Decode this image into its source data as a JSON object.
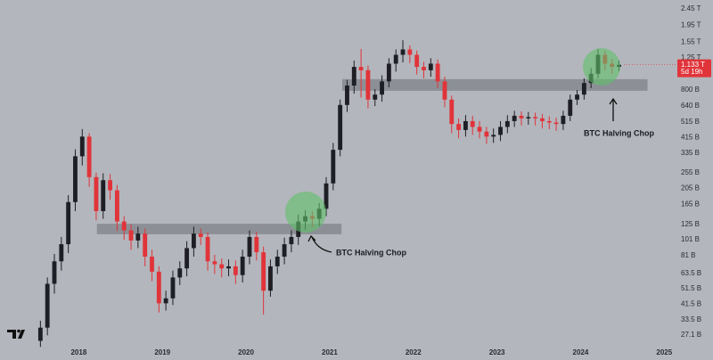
{
  "chart_data": {
    "type": "candlestick",
    "log_scale": true,
    "up_color": "#1e1f24",
    "down_color": "#e0343a",
    "open": [
      25,
      30,
      55,
      75,
      95,
      170,
      320,
      420,
      240,
      150,
      230,
      200,
      130,
      115,
      100,
      110,
      80,
      65,
      42,
      45,
      60,
      68,
      90,
      110,
      105,
      75,
      72,
      68,
      70,
      62,
      80,
      105,
      85,
      50,
      70,
      80,
      95,
      105,
      130,
      140,
      135,
      155,
      220,
      350,
      650,
      850,
      1100,
      1050,
      700,
      750,
      900,
      1150,
      1300,
      1400,
      1300,
      1100,
      1050,
      1150,
      900,
      700,
      500,
      460,
      520,
      480,
      450,
      420,
      430,
      480,
      520,
      560,
      540,
      550,
      540,
      520,
      510,
      500,
      560,
      700,
      750,
      880,
      1000,
      1300,
      1150,
      1100
    ],
    "high": [
      33,
      60,
      83,
      105,
      187,
      352,
      466,
      440,
      255,
      253,
      250,
      215,
      140,
      125,
      121,
      118,
      88,
      70,
      50,
      66,
      75,
      99,
      121,
      118,
      112,
      82,
      78,
      77,
      76,
      88,
      115,
      113,
      92,
      77,
      88,
      104,
      115,
      143,
      152,
      150,
      168,
      240,
      385,
      700,
      920,
      1200,
      1410,
      1120,
      810,
      980,
      1240,
      1400,
      1590,
      1480,
      1380,
      1180,
      1240,
      1220,
      960,
      740,
      540,
      565,
      560,
      520,
      480,
      470,
      520,
      565,
      600,
      595,
      590,
      585,
      575,
      555,
      545,
      600,
      750,
      800,
      940,
      1080,
      1410,
      1380,
      1230,
      1200
    ],
    "low": [
      23,
      27,
      48,
      66,
      84,
      150,
      282,
      210,
      132,
      135,
      176,
      114,
      101,
      88,
      90,
      70,
      57,
      37,
      38,
      41,
      54,
      61,
      80,
      94,
      66,
      63,
      60,
      61,
      55,
      56,
      72,
      76,
      36,
      46,
      63,
      72,
      85,
      94,
      116,
      120,
      122,
      140,
      200,
      320,
      590,
      760,
      720,
      620,
      640,
      680,
      830,
      1030,
      1170,
      1160,
      990,
      940,
      960,
      820,
      630,
      440,
      410,
      420,
      430,
      410,
      380,
      385,
      395,
      440,
      480,
      490,
      495,
      490,
      470,
      465,
      455,
      460,
      520,
      650,
      700,
      820,
      940,
      1050,
      1000,
      1040
    ],
    "close": [
      30,
      55,
      75,
      95,
      170,
      320,
      420,
      240,
      150,
      230,
      200,
      130,
      115,
      100,
      110,
      80,
      65,
      42,
      45,
      60,
      68,
      90,
      110,
      105,
      75,
      72,
      68,
      70,
      62,
      80,
      105,
      85,
      50,
      70,
      80,
      95,
      105,
      130,
      140,
      135,
      155,
      220,
      350,
      650,
      850,
      1100,
      1050,
      700,
      750,
      900,
      1150,
      1300,
      1400,
      1300,
      1100,
      1050,
      1150,
      900,
      700,
      500,
      460,
      520,
      480,
      450,
      420,
      430,
      480,
      520,
      560,
      540,
      550,
      540,
      520,
      510,
      500,
      560,
      700,
      750,
      880,
      1000,
      1300,
      1150,
      1100,
      1133
    ],
    "xlim": [
      -5.3,
      90.6
    ],
    "xticks": [
      {
        "value": 6,
        "label": "2018"
      },
      {
        "value": 18,
        "label": "2019"
      },
      {
        "value": 30,
        "label": "2020"
      },
      {
        "value": 42,
        "label": "2021"
      },
      {
        "value": 54,
        "label": "2022"
      },
      {
        "value": 66,
        "label": "2023"
      },
      {
        "value": 78,
        "label": "2024"
      },
      {
        "value": 90,
        "label": "2025"
      }
    ],
    "ylim": [
      22.8,
      2771
    ],
    "yticks": [
      {
        "value": 2450,
        "label": "2.45 T"
      },
      {
        "value": 1950,
        "label": "1.95 T"
      },
      {
        "value": 1550,
        "label": "1.55 T"
      },
      {
        "value": 1250,
        "label": "1.25 T"
      },
      {
        "value": 800,
        "label": "800 B"
      },
      {
        "value": 640,
        "label": "640 B"
      },
      {
        "value": 515,
        "label": "515 B"
      },
      {
        "value": 415,
        "label": "415 B"
      },
      {
        "value": 335,
        "label": "335 B"
      },
      {
        "value": 255,
        "label": "255 B"
      },
      {
        "value": 205,
        "label": "205 B"
      },
      {
        "value": 165,
        "label": "165 B"
      },
      {
        "value": 125,
        "label": "125 B"
      },
      {
        "value": 101,
        "label": "101 B"
      },
      {
        "value": 81,
        "label": "81 B"
      },
      {
        "value": 63.5,
        "label": "63.5 B"
      },
      {
        "value": 51.5,
        "label": "51.5 B"
      },
      {
        "value": 41.5,
        "label": "41.5 B"
      },
      {
        "value": 33.5,
        "label": "33.5 B"
      },
      {
        "value": 27.1,
        "label": "27.1 B"
      }
    ],
    "zones": [
      {
        "x": [
          8.6,
          43.7
        ],
        "y": [
          109,
          126
        ]
      },
      {
        "x": [
          43.8,
          87.6
        ],
        "y": [
          791,
          928
        ]
      }
    ],
    "zone_color": "#7f8288",
    "last_price": {
      "value": 1133,
      "label": "1.133 T"
    },
    "countdown": "5d 19h",
    "annotations": [
      "BTC Halving Chop",
      "BTC Halving Chop"
    ]
  }
}
